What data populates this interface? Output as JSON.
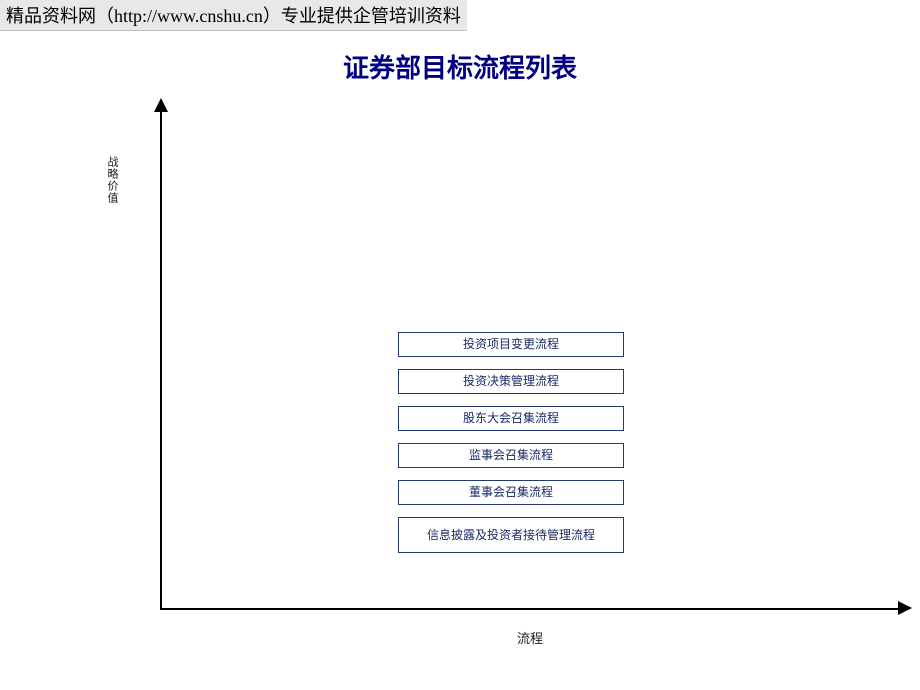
{
  "watermark": "精品资料网（http://www.cnshu.cn）专业提供企管培训资料",
  "title": "证券部目标流程列表",
  "chart": {
    "type": "labeled-axes-with-boxes",
    "y_axis_label": "战略价值",
    "x_axis_label": "流程",
    "axis_color": "#000000",
    "background_color": "#ffffff",
    "box_border_color": "#22386f",
    "box_text_color": "#1a2a66",
    "box_fontsize_pt": 9,
    "title_color": "#000080",
    "title_fontsize_pt": 20,
    "boxes": [
      {
        "label": "投资项目变更流程",
        "height": "small"
      },
      {
        "label": "投资决策管理流程",
        "height": "small"
      },
      {
        "label": "股东大会召集流程",
        "height": "small"
      },
      {
        "label": "监事会召集流程",
        "height": "small"
      },
      {
        "label": "董事会召集流程",
        "height": "small"
      },
      {
        "label": "信息披露及投资者接待管理流程",
        "height": "tall"
      }
    ]
  }
}
